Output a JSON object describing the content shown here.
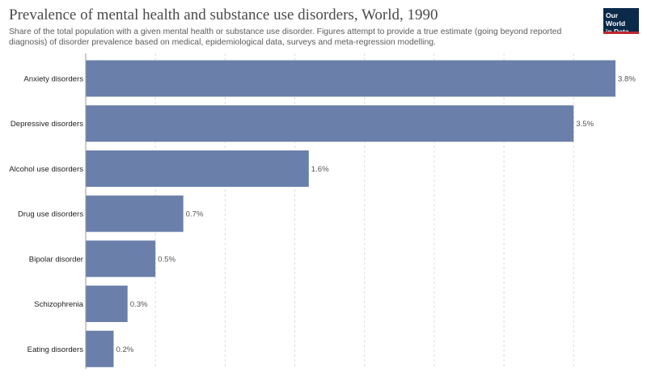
{
  "title": "Prevalence of mental health and substance use disorders, World, 1990",
  "subtitle": "Share of the total population with a given mental health or substance use disorder. Figures attempt to provide a true estimate (going beyond reported diagnosis) of disorder prevalence based on medical, epidemiological data, surveys and meta-regression modelling.",
  "logo": {
    "line1": "Our World",
    "line2": "in Data"
  },
  "colors": {
    "bar": "#6a7faa",
    "grid": "#dddddd",
    "axis": "#999999",
    "logo_bg": "#0b2a4a",
    "logo_accent": "#c0262d"
  },
  "chart_data": {
    "type": "bar",
    "orientation": "horizontal",
    "categories": [
      "Anxiety disorders",
      "Depressive disorders",
      "Alcohol use disorders",
      "Drug use disorders",
      "Bipolar disorder",
      "Schizophrenia",
      "Eating disorders"
    ],
    "values": [
      3.8,
      3.5,
      1.6,
      0.7,
      0.5,
      0.3,
      0.2
    ],
    "value_labels": [
      "3.8%",
      "3.5%",
      "1.6%",
      "0.7%",
      "0.5%",
      "0.3%",
      "0.2%"
    ],
    "unit": "%",
    "xlim": [
      0,
      3.8
    ],
    "grid_ticks": [
      0.5,
      1.0,
      1.5,
      2.0,
      2.5,
      3.0,
      3.5
    ],
    "grid": true
  }
}
